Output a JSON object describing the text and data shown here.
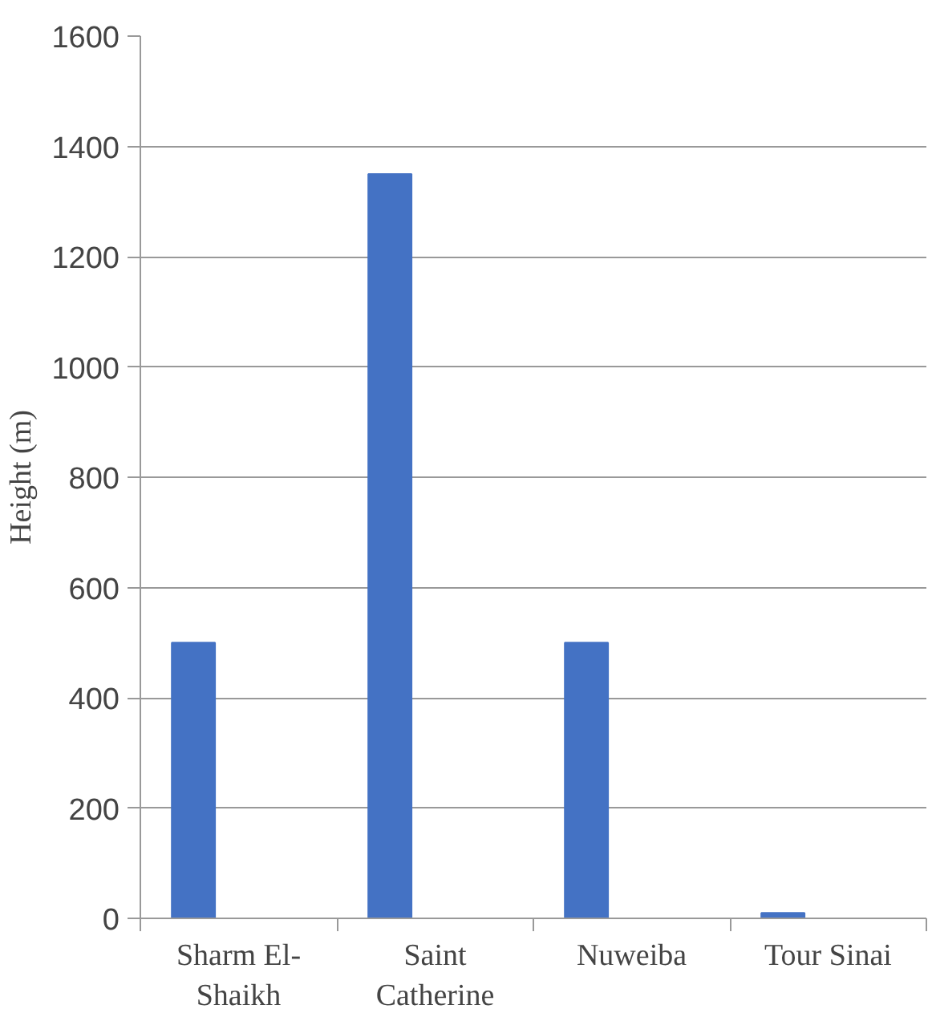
{
  "chart_data": {
    "type": "bar",
    "ylabel": "Height (m)",
    "categories": [
      "Sharm El-Shaikh",
      "Saint Catherine",
      "Nuweiba",
      "Tour Sinai"
    ],
    "values": [
      500,
      1350,
      500,
      10
    ],
    "color": "#4472c4",
    "ylim": [
      0,
      1600
    ],
    "yticks": [
      0,
      200,
      400,
      600,
      800,
      1000,
      1200,
      1400,
      1600
    ],
    "grid": "y"
  }
}
